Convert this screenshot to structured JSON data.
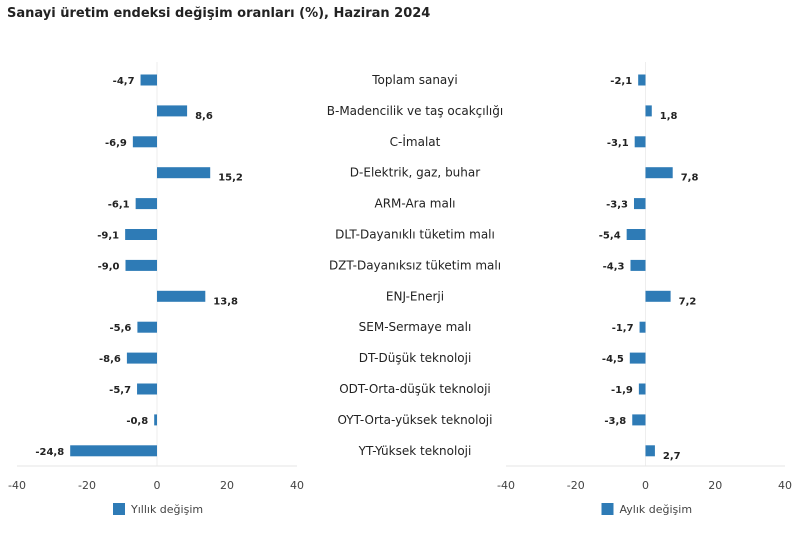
{
  "chart_data": [
    {
      "type": "bar",
      "orientation": "horizontal",
      "title": "Sanayi üretim endeksi değişim oranları (%), Haziran 2024",
      "categories": [
        "Toplam sanayi",
        "B-Madencilik ve taş ocakçılığı",
        "C-İmalat",
        "D-Elektrik, gaz, buhar",
        "ARM-Ara malı",
        "DLT-Dayanıklı tüketim malı",
        "DZT-Dayanıksız tüketim malı",
        "ENJ-Enerji",
        "SEM-Sermaye malı",
        "DT-Düşük teknoloji",
        "ODT-Orta-düşük teknoloji",
        "OYT-Orta-yüksek teknoloji",
        "YT-Yüksek teknoloji"
      ],
      "series": [
        {
          "name": "Yıllık değişim",
          "values": [
            -4.7,
            8.6,
            -6.9,
            15.2,
            -6.1,
            -9.1,
            -9.0,
            13.8,
            -5.6,
            -8.6,
            -5.7,
            -0.8,
            -24.8
          ],
          "labels": [
            "-4,7",
            "8,6",
            "-6,9",
            "15,2",
            "-6,1",
            "-9,1",
            "-9,0",
            "13,8",
            "-5,6",
            "-8,6",
            "-5,7",
            "-0,8",
            "-24,8"
          ]
        },
        {
          "name": "Aylık değişim",
          "values": [
            -2.1,
            1.8,
            -3.1,
            7.8,
            -3.3,
            -5.4,
            -4.3,
            7.2,
            -1.7,
            -4.5,
            -1.9,
            -3.8,
            2.7
          ],
          "labels": [
            "-2,1",
            "1,8",
            "-3,1",
            "7,8",
            "-3,3",
            "-5,4",
            "-4,3",
            "7,2",
            "-1,7",
            "-4,5",
            "-1,9",
            "-3,8",
            "2,7"
          ]
        }
      ],
      "xlim": [
        -40,
        40
      ],
      "xticks": [
        "-40",
        "-20",
        "0",
        "20",
        "40"
      ],
      "grid": false,
      "legend": "bottom",
      "color": "#2e7bb6"
    }
  ]
}
